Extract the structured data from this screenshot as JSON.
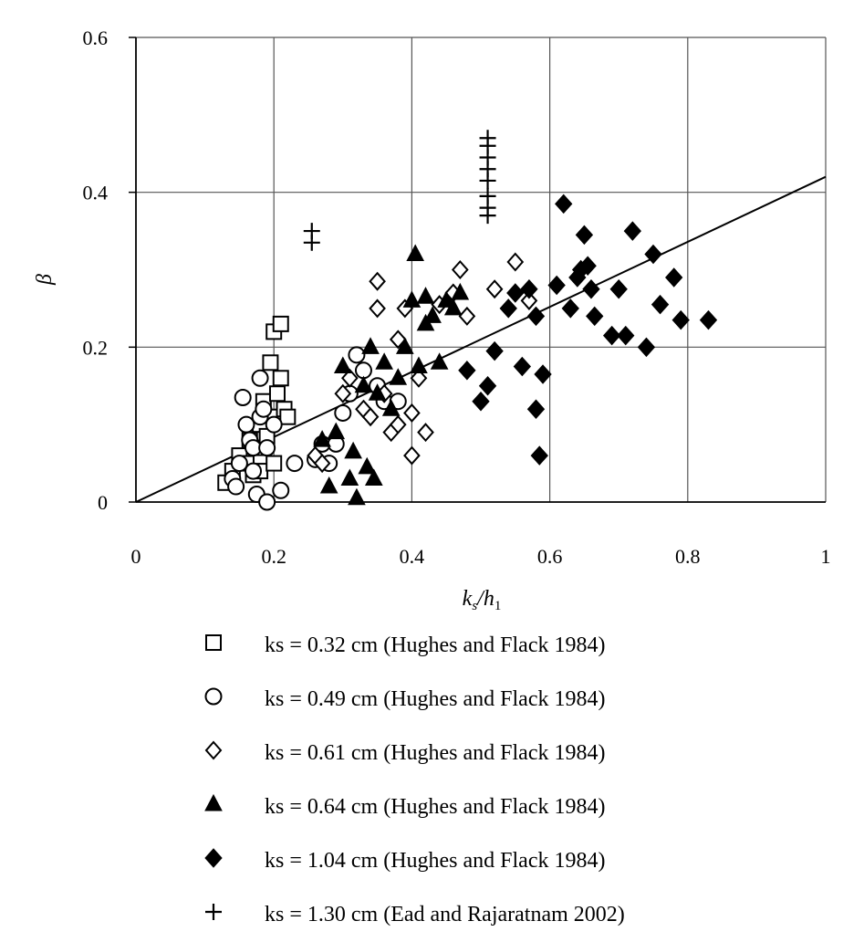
{
  "chart_data": {
    "type": "scatter",
    "title": "",
    "xlabel": "ks/h1",
    "ylabel": "β",
    "xlim": [
      0,
      1
    ],
    "ylim": [
      0,
      0.6
    ],
    "x_ticks": [
      "0",
      "0.2",
      "0.4",
      "0.6",
      "0.8",
      "1"
    ],
    "y_ticks": [
      "0",
      "0.2",
      "0.4",
      "0.6"
    ],
    "grid": true,
    "legend_position": "bottom",
    "fit_line": {
      "type": "line",
      "x": [
        0,
        1
      ],
      "y": [
        0,
        0.42
      ]
    },
    "series": [
      {
        "name": "ks = 0.32 cm (Hughes and Flack 1984)",
        "marker": "open-square",
        "points": [
          [
            0.13,
            0.025
          ],
          [
            0.14,
            0.04
          ],
          [
            0.15,
            0.06
          ],
          [
            0.16,
            0.05
          ],
          [
            0.165,
            0.08
          ],
          [
            0.17,
            0.035
          ],
          [
            0.175,
            0.07
          ],
          [
            0.18,
            0.04
          ],
          [
            0.18,
            0.1
          ],
          [
            0.185,
            0.13
          ],
          [
            0.19,
            0.085
          ],
          [
            0.195,
            0.18
          ],
          [
            0.2,
            0.22
          ],
          [
            0.2,
            0.11
          ],
          [
            0.205,
            0.14
          ],
          [
            0.21,
            0.23
          ],
          [
            0.21,
            0.16
          ],
          [
            0.215,
            0.12
          ],
          [
            0.22,
            0.11
          ],
          [
            0.2,
            0.05
          ]
        ]
      },
      {
        "name": "ks = 0.49 cm (Hughes and Flack 1984)",
        "marker": "open-circle",
        "points": [
          [
            0.14,
            0.03
          ],
          [
            0.145,
            0.02
          ],
          [
            0.15,
            0.05
          ],
          [
            0.155,
            0.135
          ],
          [
            0.16,
            0.1
          ],
          [
            0.165,
            0.08
          ],
          [
            0.17,
            0.07
          ],
          [
            0.17,
            0.04
          ],
          [
            0.175,
            0.01
          ],
          [
            0.18,
            0.11
          ],
          [
            0.18,
            0.16
          ],
          [
            0.185,
            0.12
          ],
          [
            0.19,
            0.0
          ],
          [
            0.19,
            0.07
          ],
          [
            0.2,
            0.1
          ],
          [
            0.21,
            0.015
          ],
          [
            0.23,
            0.05
          ],
          [
            0.26,
            0.055
          ],
          [
            0.27,
            0.075
          ],
          [
            0.28,
            0.05
          ],
          [
            0.29,
            0.075
          ],
          [
            0.3,
            0.115
          ],
          [
            0.31,
            0.14
          ],
          [
            0.32,
            0.19
          ],
          [
            0.33,
            0.17
          ],
          [
            0.35,
            0.15
          ],
          [
            0.36,
            0.13
          ],
          [
            0.38,
            0.13
          ]
        ]
      },
      {
        "name": "ks = 0.61 cm (Hughes and Flack 1984)",
        "marker": "open-diamond",
        "points": [
          [
            0.26,
            0.06
          ],
          [
            0.27,
            0.05
          ],
          [
            0.3,
            0.14
          ],
          [
            0.31,
            0.16
          ],
          [
            0.33,
            0.12
          ],
          [
            0.34,
            0.11
          ],
          [
            0.35,
            0.25
          ],
          [
            0.35,
            0.285
          ],
          [
            0.36,
            0.14
          ],
          [
            0.37,
            0.09
          ],
          [
            0.38,
            0.21
          ],
          [
            0.38,
            0.1
          ],
          [
            0.39,
            0.25
          ],
          [
            0.4,
            0.06
          ],
          [
            0.4,
            0.115
          ],
          [
            0.41,
            0.16
          ],
          [
            0.42,
            0.09
          ],
          [
            0.44,
            0.255
          ],
          [
            0.46,
            0.27
          ],
          [
            0.47,
            0.3
          ],
          [
            0.48,
            0.24
          ],
          [
            0.52,
            0.275
          ],
          [
            0.55,
            0.31
          ],
          [
            0.57,
            0.26
          ]
        ]
      },
      {
        "name": "ks = 0.64 cm (Hughes and Flack 1984)",
        "marker": "filled-triangle",
        "points": [
          [
            0.27,
            0.08
          ],
          [
            0.28,
            0.02
          ],
          [
            0.29,
            0.09
          ],
          [
            0.3,
            0.175
          ],
          [
            0.31,
            0.03
          ],
          [
            0.315,
            0.065
          ],
          [
            0.32,
            0.005
          ],
          [
            0.33,
            0.15
          ],
          [
            0.335,
            0.045
          ],
          [
            0.34,
            0.2
          ],
          [
            0.345,
            0.03
          ],
          [
            0.35,
            0.14
          ],
          [
            0.36,
            0.18
          ],
          [
            0.37,
            0.12
          ],
          [
            0.38,
            0.16
          ],
          [
            0.39,
            0.2
          ],
          [
            0.4,
            0.26
          ],
          [
            0.405,
            0.32
          ],
          [
            0.41,
            0.175
          ],
          [
            0.42,
            0.265
          ],
          [
            0.42,
            0.23
          ],
          [
            0.43,
            0.24
          ],
          [
            0.44,
            0.18
          ],
          [
            0.45,
            0.26
          ],
          [
            0.46,
            0.25
          ],
          [
            0.47,
            0.27
          ]
        ]
      },
      {
        "name": "ks = 1.04 cm (Hughes and Flack 1984)",
        "marker": "filled-diamond",
        "points": [
          [
            0.48,
            0.17
          ],
          [
            0.5,
            0.13
          ],
          [
            0.51,
            0.15
          ],
          [
            0.52,
            0.195
          ],
          [
            0.54,
            0.25
          ],
          [
            0.55,
            0.27
          ],
          [
            0.56,
            0.175
          ],
          [
            0.57,
            0.275
          ],
          [
            0.58,
            0.24
          ],
          [
            0.58,
            0.12
          ],
          [
            0.585,
            0.06
          ],
          [
            0.59,
            0.165
          ],
          [
            0.61,
            0.28
          ],
          [
            0.62,
            0.385
          ],
          [
            0.63,
            0.25
          ],
          [
            0.64,
            0.29
          ],
          [
            0.645,
            0.3
          ],
          [
            0.65,
            0.345
          ],
          [
            0.655,
            0.305
          ],
          [
            0.66,
            0.275
          ],
          [
            0.665,
            0.24
          ],
          [
            0.69,
            0.215
          ],
          [
            0.7,
            0.275
          ],
          [
            0.71,
            0.215
          ],
          [
            0.72,
            0.35
          ],
          [
            0.74,
            0.2
          ],
          [
            0.75,
            0.32
          ],
          [
            0.76,
            0.255
          ],
          [
            0.78,
            0.29
          ],
          [
            0.79,
            0.235
          ],
          [
            0.83,
            0.235
          ]
        ]
      },
      {
        "name": "ks = 1.30 cm (Ead and Rajaratnam 2002)",
        "marker": "plus",
        "points": [
          [
            0.255,
            0.35
          ],
          [
            0.255,
            0.335
          ],
          [
            0.51,
            0.47
          ],
          [
            0.51,
            0.46
          ],
          [
            0.51,
            0.445
          ],
          [
            0.51,
            0.43
          ],
          [
            0.51,
            0.415
          ],
          [
            0.51,
            0.395
          ],
          [
            0.51,
            0.38
          ],
          [
            0.51,
            0.37
          ]
        ]
      }
    ]
  }
}
